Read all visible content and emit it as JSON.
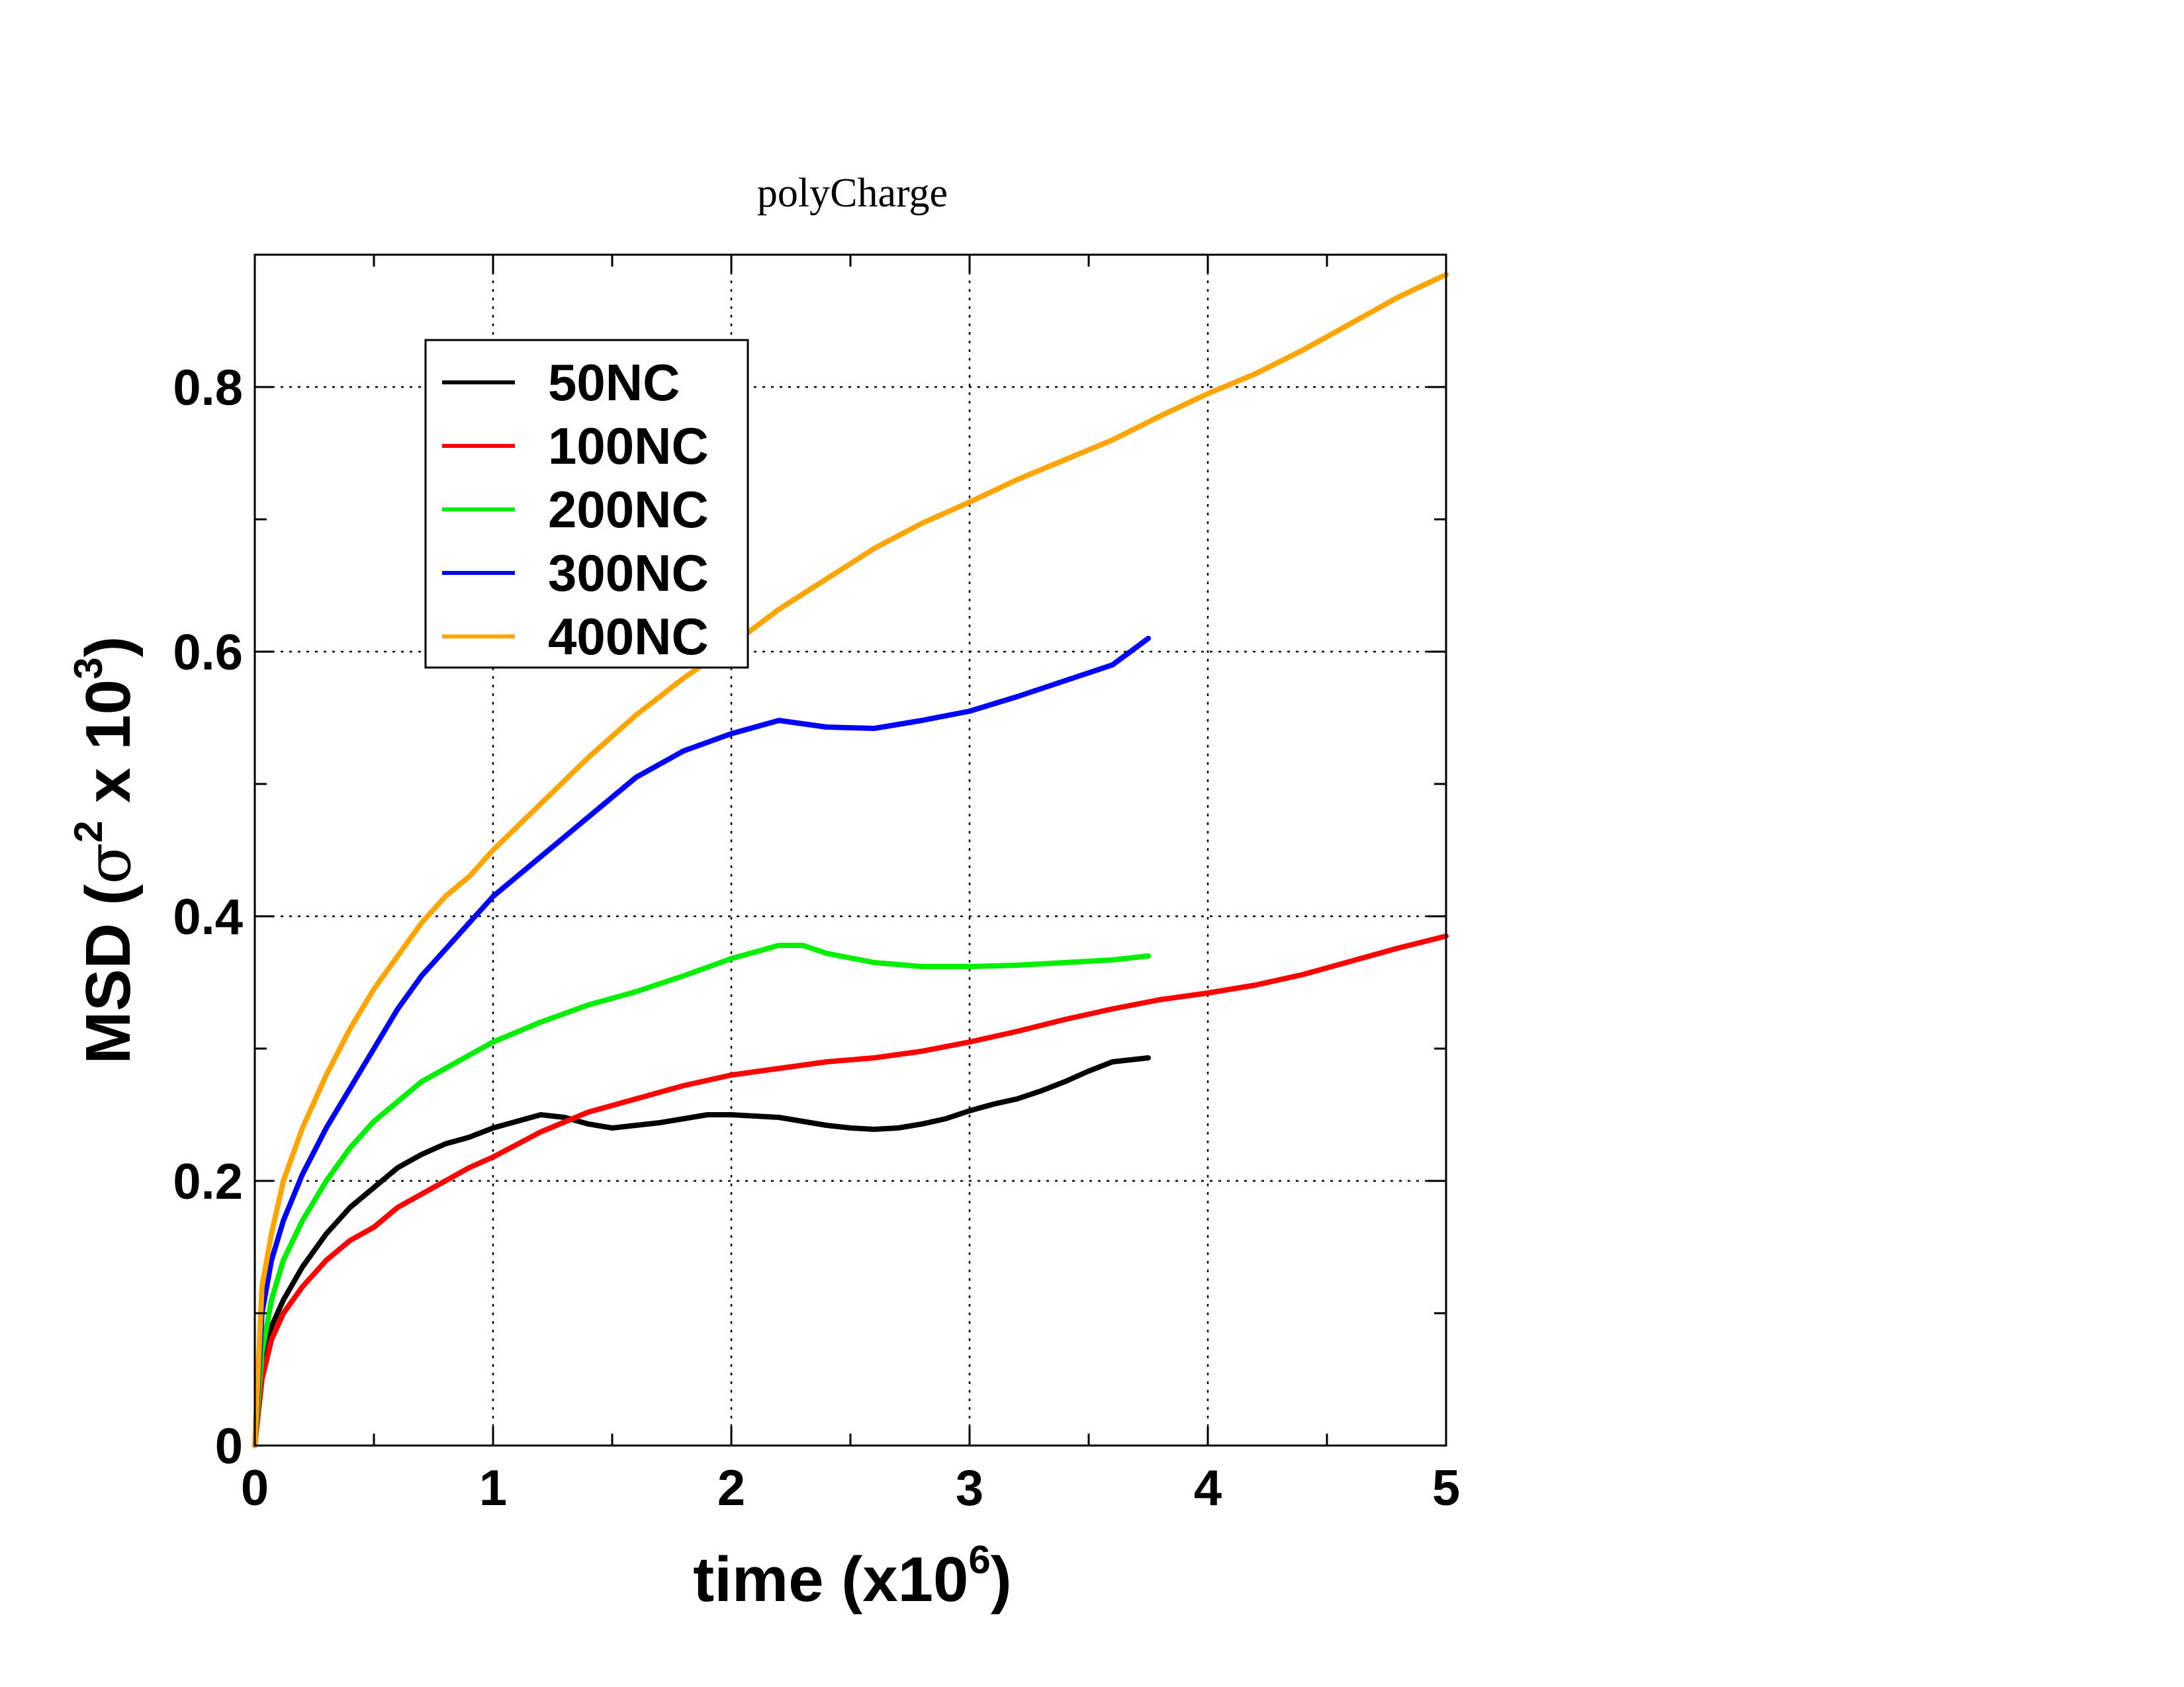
{
  "chart_data": {
    "type": "line",
    "title": "polyCharge",
    "xlabel": {
      "prefix": "time (x10",
      "superscript": "6",
      "suffix": ")"
    },
    "ylabel": {
      "prefix": "MSD (",
      "greek": "σ",
      "superscript1": "2",
      "middle": " x 10",
      "superscript2": "3",
      "suffix": ")"
    },
    "xlim": [
      0,
      5
    ],
    "ylim": [
      0,
      0.9
    ],
    "x_ticks": [
      0,
      1,
      2,
      3,
      4,
      5
    ],
    "x_tick_labels": [
      "0",
      "1",
      "2",
      "3",
      "4",
      "5"
    ],
    "y_ticks": [
      0,
      0.2,
      0.4,
      0.6,
      0.8
    ],
    "y_tick_labels": [
      "0",
      "0.2",
      "0.4",
      "0.6",
      "0.8"
    ],
    "grid": true,
    "legend_position": "top-left",
    "series": [
      {
        "name": "50NC",
        "color": "#000000",
        "x": [
          0,
          0.03,
          0.07,
          0.12,
          0.2,
          0.3,
          0.4,
          0.5,
          0.6,
          0.7,
          0.8,
          0.9,
          1.0,
          1.1,
          1.2,
          1.3,
          1.4,
          1.5,
          1.6,
          1.7,
          1.8,
          1.9,
          2.0,
          2.1,
          2.2,
          2.3,
          2.4,
          2.5,
          2.6,
          2.7,
          2.8,
          2.9,
          3.0,
          3.1,
          3.2,
          3.3,
          3.4,
          3.5,
          3.6,
          3.7,
          3.75
        ],
        "y": [
          0,
          0.06,
          0.09,
          0.11,
          0.135,
          0.16,
          0.18,
          0.195,
          0.21,
          0.22,
          0.228,
          0.233,
          0.24,
          0.245,
          0.25,
          0.248,
          0.243,
          0.24,
          0.242,
          0.244,
          0.247,
          0.25,
          0.25,
          0.249,
          0.248,
          0.245,
          0.242,
          0.24,
          0.239,
          0.24,
          0.243,
          0.247,
          0.253,
          0.258,
          0.262,
          0.268,
          0.275,
          0.283,
          0.29,
          0.292,
          0.293
        ]
      },
      {
        "name": "100NC",
        "color": "#ff0000",
        "x": [
          0,
          0.03,
          0.07,
          0.12,
          0.2,
          0.3,
          0.4,
          0.5,
          0.6,
          0.7,
          0.8,
          0.9,
          1.0,
          1.2,
          1.4,
          1.6,
          1.8,
          2.0,
          2.2,
          2.4,
          2.6,
          2.8,
          3.0,
          3.2,
          3.4,
          3.6,
          3.8,
          4.0,
          4.2,
          4.4,
          4.6,
          4.8,
          5.0
        ],
        "y": [
          0,
          0.05,
          0.08,
          0.1,
          0.12,
          0.14,
          0.155,
          0.165,
          0.18,
          0.19,
          0.2,
          0.21,
          0.218,
          0.237,
          0.252,
          0.262,
          0.272,
          0.28,
          0.285,
          0.29,
          0.293,
          0.298,
          0.305,
          0.313,
          0.322,
          0.33,
          0.337,
          0.342,
          0.348,
          0.356,
          0.366,
          0.376,
          0.385
        ]
      },
      {
        "name": "200NC",
        "color": "#00ee00",
        "x": [
          0,
          0.03,
          0.07,
          0.12,
          0.2,
          0.3,
          0.4,
          0.5,
          0.6,
          0.7,
          0.8,
          0.9,
          1.0,
          1.2,
          1.4,
          1.6,
          1.8,
          2.0,
          2.2,
          2.3,
          2.4,
          2.6,
          2.8,
          3.0,
          3.2,
          3.4,
          3.6,
          3.75
        ],
        "y": [
          0,
          0.07,
          0.11,
          0.14,
          0.17,
          0.2,
          0.225,
          0.245,
          0.26,
          0.275,
          0.285,
          0.295,
          0.305,
          0.32,
          0.333,
          0.343,
          0.355,
          0.368,
          0.378,
          0.378,
          0.372,
          0.365,
          0.362,
          0.362,
          0.363,
          0.365,
          0.367,
          0.37
        ]
      },
      {
        "name": "300NC",
        "color": "#0000ff",
        "x": [
          0,
          0.03,
          0.07,
          0.12,
          0.2,
          0.3,
          0.4,
          0.5,
          0.6,
          0.7,
          0.8,
          0.9,
          1.0,
          1.2,
          1.4,
          1.6,
          1.8,
          2.0,
          2.2,
          2.4,
          2.6,
          2.8,
          3.0,
          3.2,
          3.4,
          3.6,
          3.75
        ],
        "y": [
          0,
          0.1,
          0.14,
          0.17,
          0.205,
          0.24,
          0.27,
          0.3,
          0.33,
          0.355,
          0.375,
          0.395,
          0.415,
          0.445,
          0.475,
          0.505,
          0.525,
          0.538,
          0.548,
          0.543,
          0.542,
          0.548,
          0.555,
          0.566,
          0.578,
          0.59,
          0.61
        ]
      },
      {
        "name": "400NC",
        "color": "#ffa500",
        "x": [
          0,
          0.03,
          0.07,
          0.12,
          0.2,
          0.3,
          0.4,
          0.5,
          0.6,
          0.7,
          0.8,
          0.9,
          1.0,
          1.2,
          1.4,
          1.6,
          1.8,
          2.0,
          2.2,
          2.4,
          2.6,
          2.8,
          3.0,
          3.2,
          3.4,
          3.6,
          3.8,
          4.0,
          4.2,
          4.4,
          4.6,
          4.8,
          5.0
        ],
        "y": [
          0,
          0.12,
          0.16,
          0.2,
          0.24,
          0.28,
          0.315,
          0.345,
          0.37,
          0.395,
          0.415,
          0.43,
          0.45,
          0.485,
          0.52,
          0.552,
          0.58,
          0.605,
          0.632,
          0.655,
          0.678,
          0.697,
          0.713,
          0.73,
          0.745,
          0.76,
          0.778,
          0.795,
          0.81,
          0.828,
          0.848,
          0.868,
          0.885
        ]
      }
    ]
  }
}
